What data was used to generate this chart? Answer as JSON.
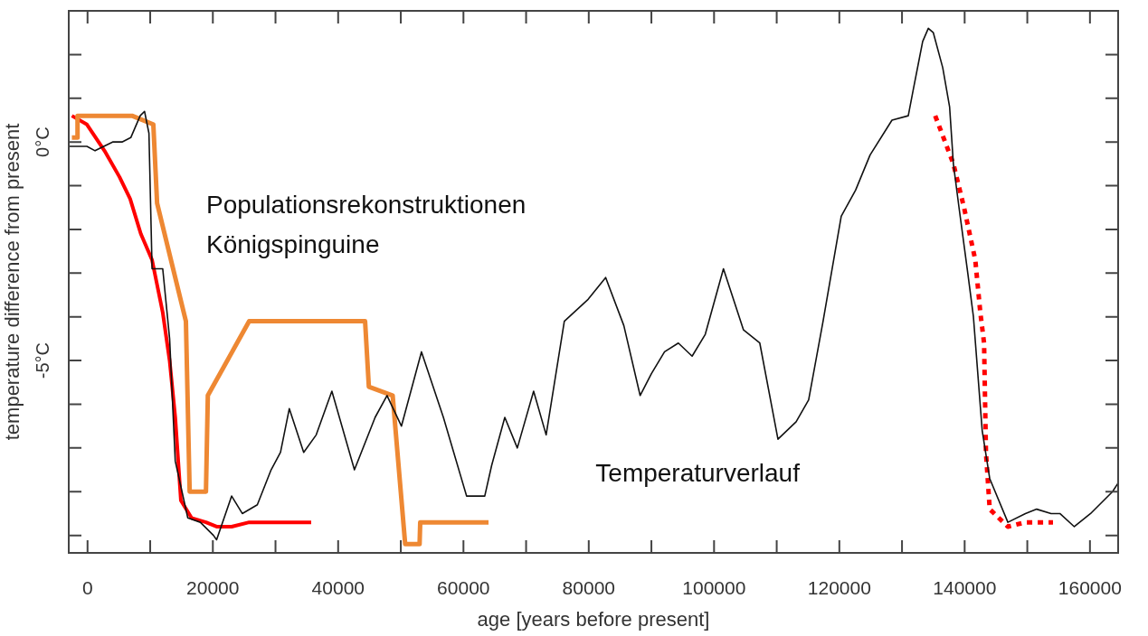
{
  "chart_data": {
    "type": "line",
    "xlabel": "age [years before present]",
    "ylabel": "temperature difference from present",
    "xlim": [
      -3000,
      164500
    ],
    "ylim": [
      -9.4,
      3.0
    ],
    "xticks": [
      0,
      {
        "value": 10000,
        "label": null
      },
      20000,
      {
        "value": 30000,
        "label": null
      },
      40000,
      {
        "value": 50000,
        "label": null
      },
      60000,
      {
        "value": 70000,
        "label": null
      },
      80000,
      {
        "value": 90000,
        "label": null
      },
      100000,
      {
        "value": 110000,
        "label": null
      },
      120000,
      {
        "value": 130000,
        "label": null
      },
      140000,
      {
        "value": 150000,
        "label": null
      },
      160000
    ],
    "yticks": [
      {
        "value": -9,
        "label": null
      },
      {
        "value": -8,
        "label": null
      },
      {
        "value": -7,
        "label": null
      },
      {
        "value": -6,
        "label": null
      },
      {
        "value": -5,
        "label": "-5°C"
      },
      {
        "value": -4,
        "label": null
      },
      {
        "value": -3,
        "label": null
      },
      {
        "value": -2,
        "label": null
      },
      {
        "value": -1,
        "label": null
      },
      {
        "value": 0,
        "label": "0°C"
      },
      {
        "value": 1,
        "label": null
      },
      {
        "value": 2,
        "label": null
      }
    ],
    "series": [
      {
        "color": "#111111",
        "x": [
          -3000,
          -100,
          1200,
          2600,
          4000,
          5500,
          6900,
          8400,
          9100,
          9800,
          10300,
          12000,
          13100,
          14000,
          16000,
          18000,
          20100,
          20600,
          23000,
          24700,
          27100,
          29300,
          30800,
          32200,
          34500,
          36500,
          39000,
          42600,
          45900,
          47800,
          50100,
          53300,
          56800,
          60500,
          63400,
          64500,
          66600,
          68600,
          71200,
          73200,
          76100,
          79900,
          82700,
          85600,
          88200,
          90000,
          92100,
          94300,
          96500,
          98600,
          101500,
          104700,
          107300,
          110200,
          113100,
          115100,
          117400,
          120300,
          122600,
          124900,
          128400,
          131000,
          131800,
          133300,
          134200,
          135000,
          136500,
          137600,
          138200,
          139100,
          140500,
          141400,
          142800,
          144000,
          146900,
          149700,
          151500,
          153800,
          155200,
          157500,
          160100,
          163600,
          164500
        ],
        "values": [
          -0.1,
          -0.1,
          -0.2,
          -0.1,
          0.0,
          0.0,
          0.1,
          0.6,
          0.7,
          0.2,
          -2.9,
          -2.9,
          -4.5,
          -7.3,
          -8.6,
          -8.7,
          -9.0,
          -9.1,
          -8.1,
          -8.5,
          -8.3,
          -7.5,
          -7.1,
          -6.1,
          -7.1,
          -6.7,
          -5.7,
          -7.5,
          -6.3,
          -5.8,
          -6.5,
          -4.8,
          -6.3,
          -8.1,
          -8.1,
          -7.4,
          -6.3,
          -7.0,
          -5.7,
          -6.7,
          -4.1,
          -3.6,
          -3.1,
          -4.2,
          -5.8,
          -5.3,
          -4.8,
          -4.6,
          -4.9,
          -4.4,
          -2.9,
          -4.3,
          -4.6,
          -6.8,
          -6.4,
          -5.9,
          -4.1,
          -1.7,
          -1.1,
          -0.3,
          0.5,
          0.6,
          1.2,
          2.3,
          2.6,
          2.5,
          1.7,
          0.8,
          -0.5,
          -1.5,
          -3.0,
          -4.0,
          -6.6,
          -7.7,
          -8.7,
          -8.5,
          -8.4,
          -8.5,
          -8.5,
          -8.8,
          -8.5,
          -8.0,
          -7.8
        ]
      },
      {
        "color": "#ee8833",
        "x": [
          -2500,
          -1600,
          -1600,
          7100,
          10500,
          11100,
          15700,
          16300,
          18900,
          19200,
          25800,
          44300,
          44900,
          48700,
          50700,
          53000,
          53100,
          64000
        ],
        "values": [
          0.1,
          0.1,
          0.6,
          0.6,
          0.4,
          -1.4,
          -4.1,
          -8.0,
          -8.0,
          -5.8,
          -4.1,
          -4.1,
          -5.6,
          -5.8,
          -9.2,
          -9.2,
          -8.7,
          -8.7
        ]
      },
      {
        "color": "#ff0000",
        "x": [
          -2500,
          -100,
          2700,
          5100,
          6800,
          8500,
          10300,
          12000,
          13100,
          14000,
          14900,
          16600,
          18900,
          20600,
          23000,
          25800,
          35700
        ],
        "values": [
          0.6,
          0.4,
          -0.2,
          -0.8,
          -1.3,
          -2.1,
          -2.7,
          -3.9,
          -5.0,
          -6.3,
          -8.2,
          -8.6,
          -8.7,
          -8.8,
          -8.8,
          -8.7,
          -8.7
        ]
      },
      {
        "color": "#ff0000",
        "line_style": "dotted",
        "x": [
          135300,
          138200,
          139900,
          141700,
          142500,
          143100,
          143400,
          144000,
          146900,
          149700,
          154100
        ],
        "values": [
          0.6,
          -0.5,
          -1.5,
          -2.7,
          -3.9,
          -4.6,
          -7.1,
          -8.4,
          -8.8,
          -8.7,
          -8.7
        ]
      }
    ],
    "annotations": [
      "Populationsrekonstruktionen\nKönigspinguine",
      "Temperaturverlauf"
    ]
  }
}
